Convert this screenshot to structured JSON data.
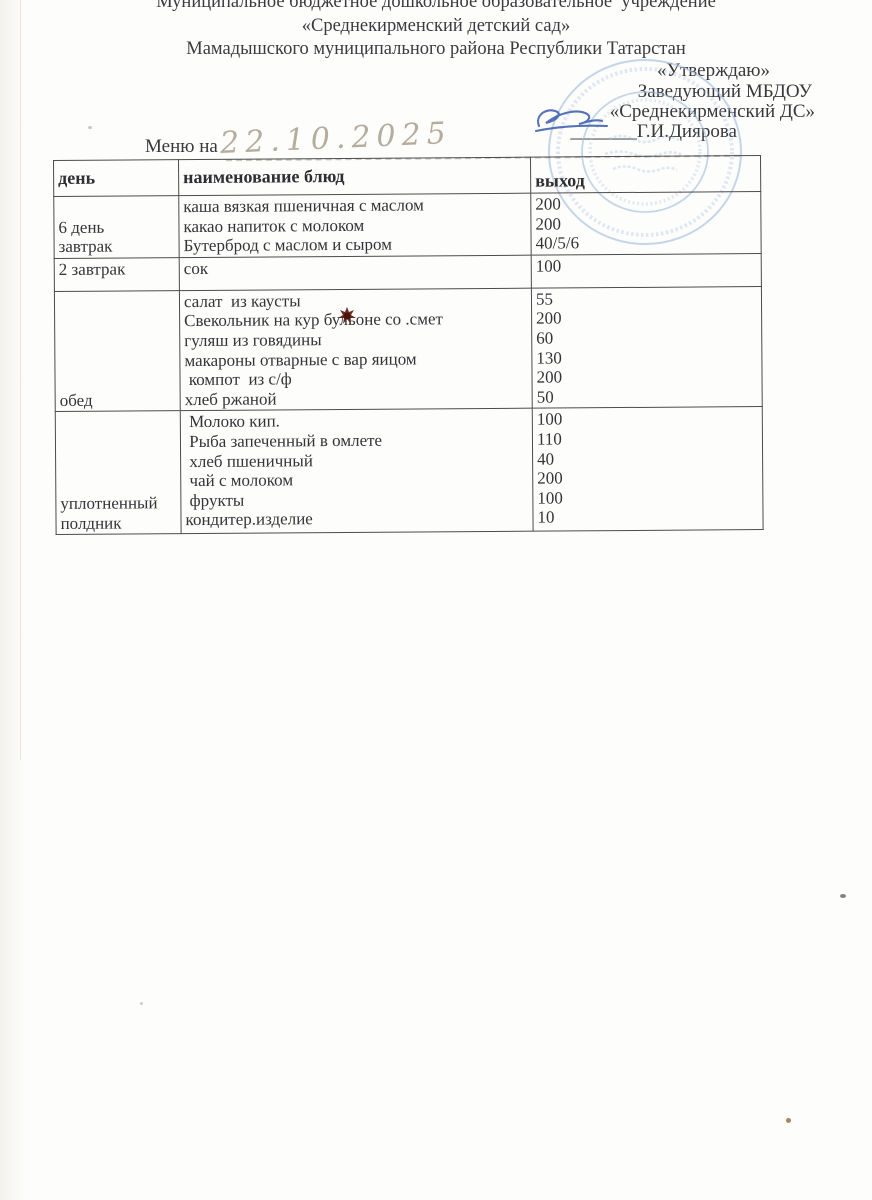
{
  "org_header": {
    "line1": "Муниципальное бюджетное дошкольное образовательное  учреждение",
    "line2": "«Среднекирменский детский сад»",
    "line3": "Мамадышского муниципального района Республики Татарстан"
  },
  "approval": {
    "approve_word": "«Утверждаю»",
    "position_line": "Заведующий МБДОУ",
    "org_short": "«Среднекирменский ДС»",
    "underline": "_______",
    "name": "Г.И.Диярова"
  },
  "menu_line": {
    "label": "Меню на",
    "handwritten_date": "22.10.2025"
  },
  "stamp": {
    "shape": "round-seal",
    "color": "#9fbcdf"
  },
  "signature": {
    "color": "#3c5fae"
  },
  "artifacts": {
    "ink_blot_color": "#5c1b0f"
  },
  "table": {
    "headers": [
      "день",
      "наименование блюд",
      "выход"
    ],
    "rows": [
      {
        "day_lines": [
          "6 день",
          "завтрак"
        ],
        "dishes": [
          "каша вязкая пшеничная с маслом",
          "какао напиток с молоком",
          "Бутерброд с маслом и сыром"
        ],
        "amounts": [
          "200",
          "200",
          "40/5/6"
        ]
      },
      {
        "day_lines": [
          "2 завтрак"
        ],
        "dishes": [
          "сок"
        ],
        "amounts": [
          "100"
        ]
      },
      {
        "day_lines": [
          "обед"
        ],
        "dishes": [
          "салат  из каусты",
          "Свекольник на кур бульоне со .смет",
          "гуляш из говядины",
          "макароны отварные с вар яицом",
          " компот  из с/ф",
          "хлеб ржаной"
        ],
        "amounts": [
          "55",
          "200",
          "60",
          "130",
          "200",
          "50"
        ]
      },
      {
        "day_lines": [
          "уплотненный",
          "полдник"
        ],
        "dishes": [
          " Молоко кип.",
          " Рыба запеченный в омлете",
          " хлеб пшеничный",
          " чай с молоком",
          " фрукты",
          "кондитер.изделие"
        ],
        "amounts": [
          "100",
          "110",
          "40",
          "200",
          "100",
          "10"
        ]
      }
    ]
  }
}
